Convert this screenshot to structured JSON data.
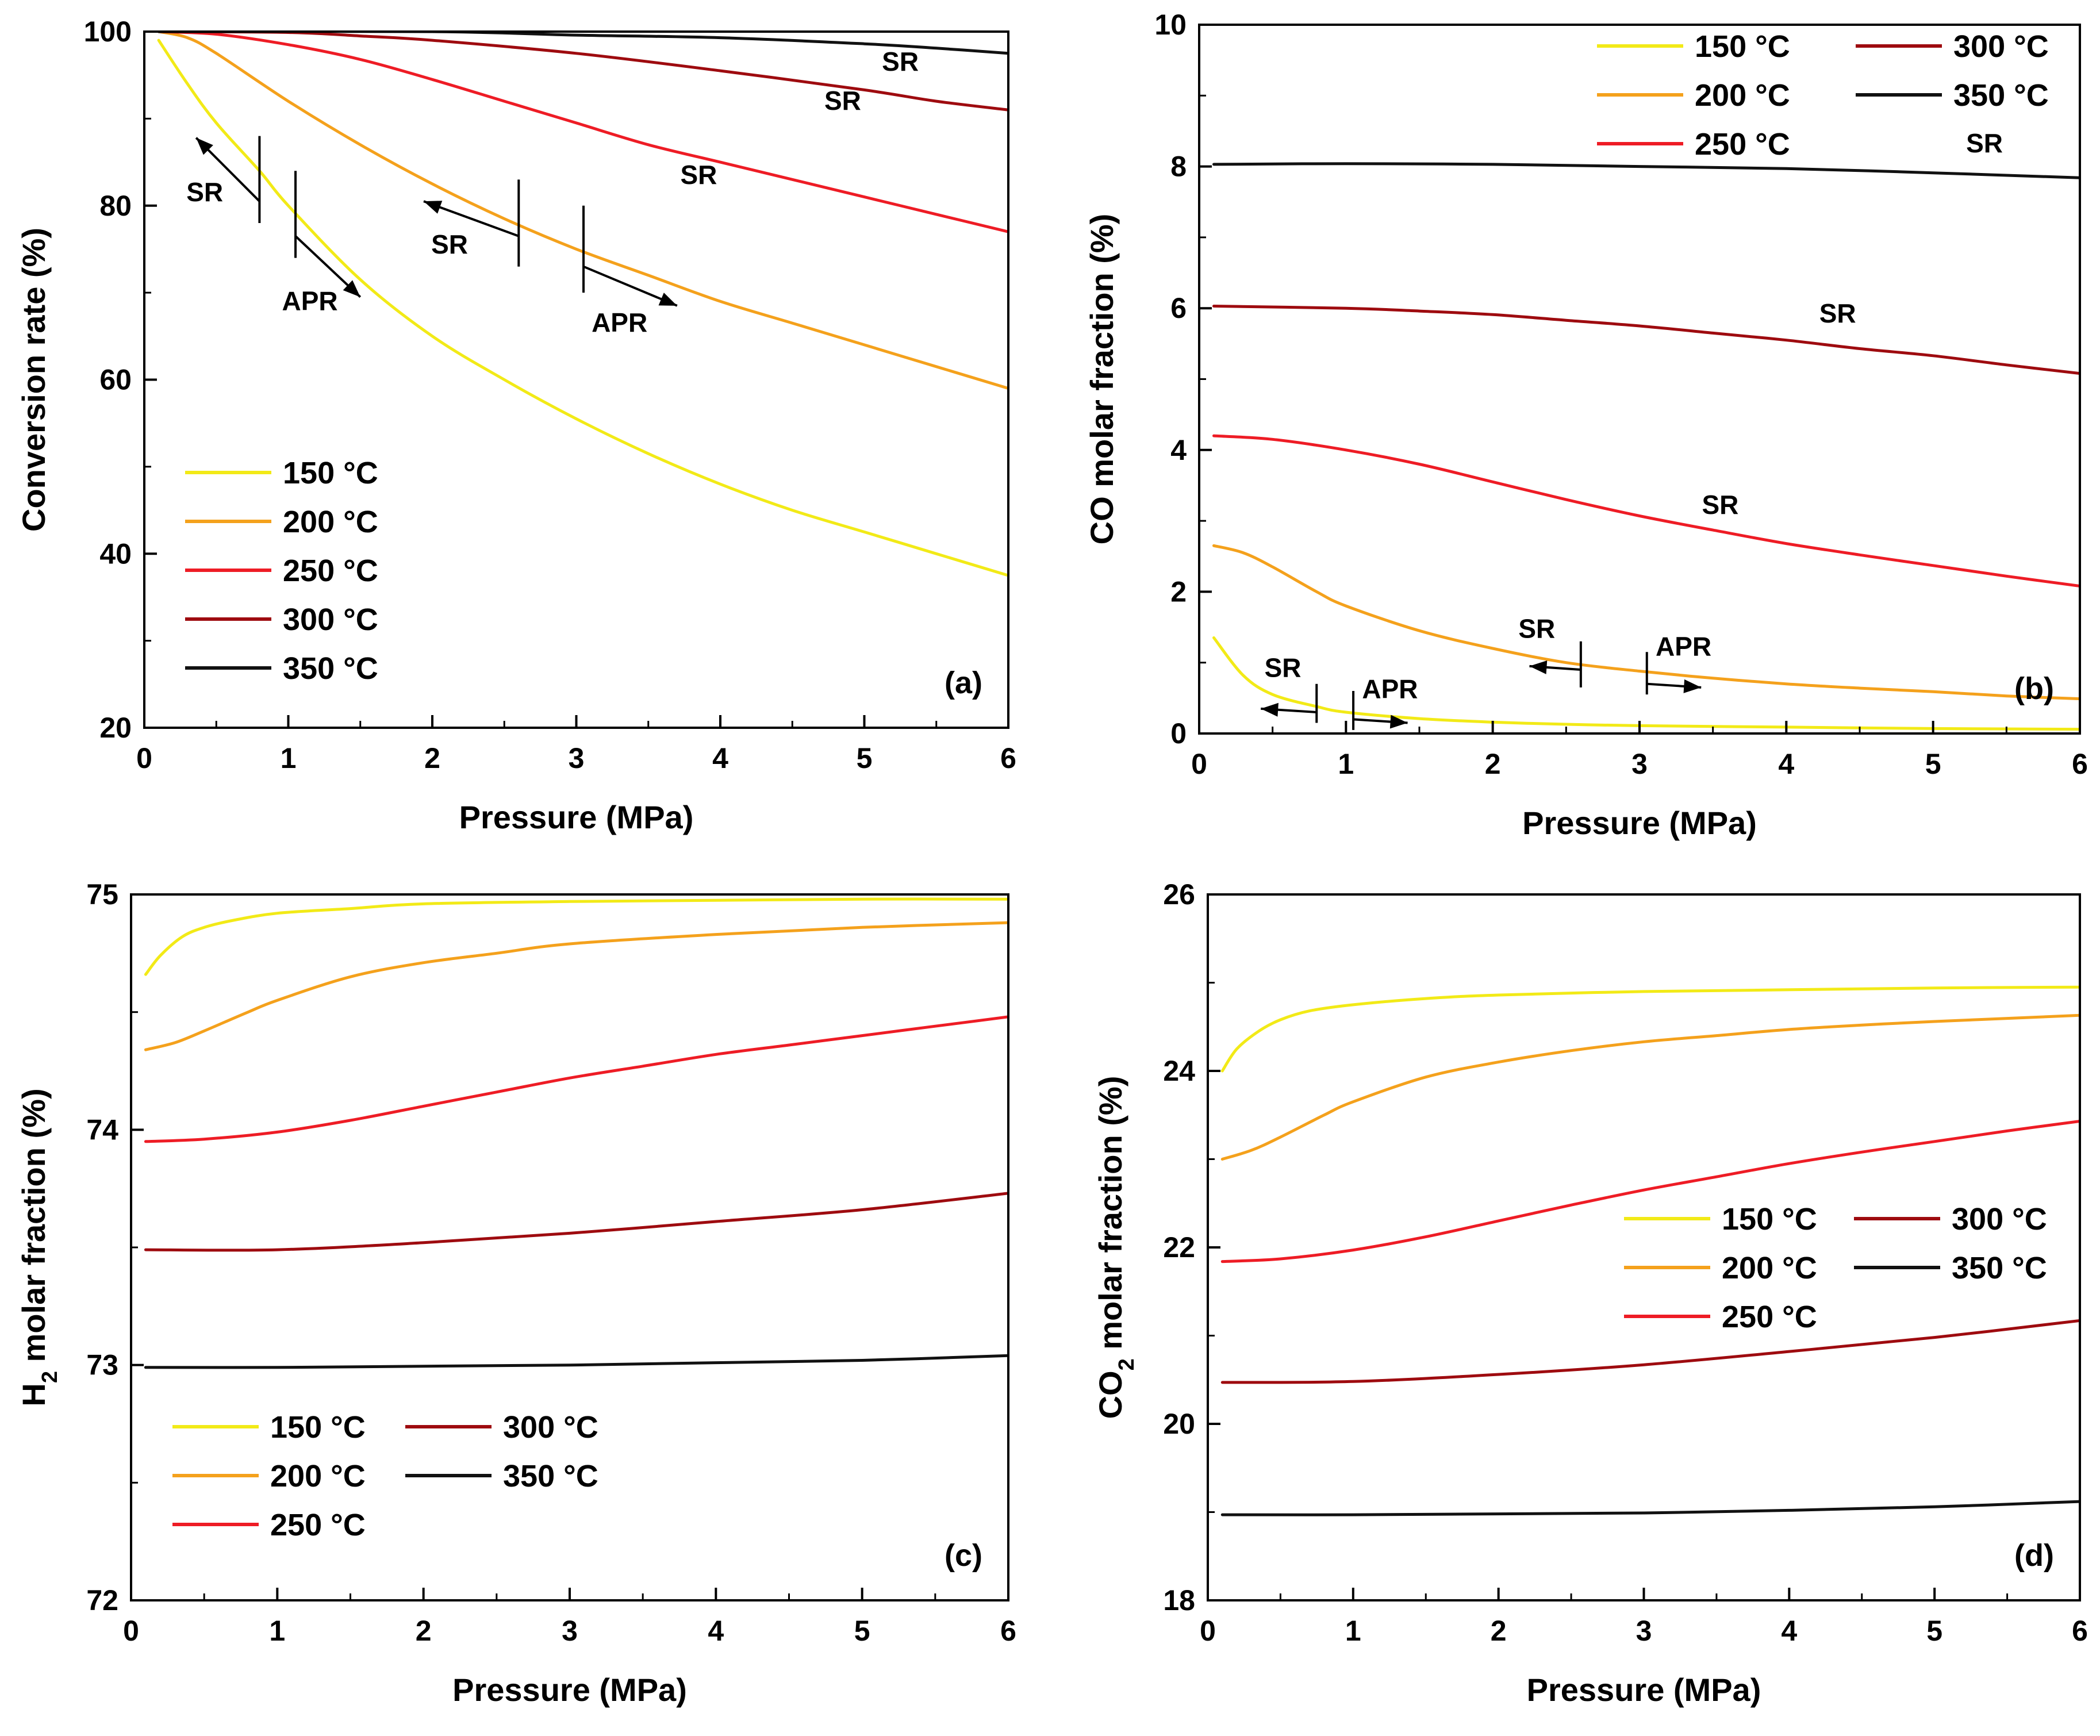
{
  "figure": {
    "colors": {
      "150 °C": "#f2ea17",
      "200 °C": "#f4a11c",
      "250 °C": "#ee1c25",
      "300 °C": "#9e0b0f",
      "350 °C": "#111111"
    }
  },
  "chart_data": [
    {
      "id": "a",
      "type": "line",
      "panel_label": "(a)",
      "xlabel": "Pressure (MPa)",
      "ylabel": "Conversion rate (%)",
      "xlim": [
        0,
        6
      ],
      "ylim": [
        20,
        100
      ],
      "xticks": [
        0,
        1,
        2,
        3,
        4,
        5,
        6
      ],
      "yticks": [
        20,
        40,
        60,
        80,
        100
      ],
      "legend_position": "bottom-left",
      "series": [
        {
          "name": "150 °C",
          "color": "#f2ea17",
          "x": [
            0.1,
            0.3,
            0.5,
            0.8,
            1.0,
            1.5,
            2.0,
            2.5,
            3.0,
            3.5,
            4.0,
            4.5,
            5.0,
            5.5,
            6.0
          ],
          "y": [
            99,
            94,
            89.5,
            84,
            80,
            71.5,
            65,
            60,
            55.5,
            51.5,
            48,
            45,
            42.5,
            40,
            37.5
          ]
        },
        {
          "name": "200 °C",
          "color": "#f4a11c",
          "x": [
            0.1,
            0.3,
            0.5,
            1.0,
            1.5,
            2.0,
            2.5,
            3.0,
            3.5,
            4.0,
            4.5,
            5.0,
            5.5,
            6.0
          ],
          "y": [
            100,
            99.3,
            97.5,
            92,
            87,
            82.5,
            78.5,
            75,
            72,
            69,
            66.5,
            64,
            61.5,
            59
          ]
        },
        {
          "name": "250 °C",
          "color": "#ee1c25",
          "x": [
            0.1,
            0.5,
            1.0,
            1.5,
            2.0,
            2.5,
            3.0,
            3.5,
            4.0,
            4.5,
            5.0,
            5.5,
            6.0
          ],
          "y": [
            100,
            99.7,
            98.5,
            96.8,
            94.5,
            92,
            89.5,
            87,
            85,
            83,
            81,
            79,
            77
          ]
        },
        {
          "name": "300 °C",
          "color": "#9e0b0f",
          "x": [
            0.1,
            1.0,
            1.5,
            2.0,
            3.0,
            4.0,
            5.0,
            5.5,
            6.0
          ],
          "y": [
            100,
            99.9,
            99.5,
            99,
            97.5,
            95.5,
            93.3,
            92,
            91
          ]
        },
        {
          "name": "350 °C",
          "color": "#111111",
          "x": [
            0.1,
            2.0,
            3.0,
            4.0,
            5.0,
            5.5,
            6.0
          ],
          "y": [
            100,
            100,
            99.6,
            99.3,
            98.6,
            98.1,
            97.5
          ]
        }
      ],
      "annotations": [
        {
          "text": "SR",
          "x": 5.25,
          "y": 95.5
        },
        {
          "text": "SR",
          "x": 4.85,
          "y": 91
        },
        {
          "text": "SR",
          "x": 3.85,
          "y": 82.5
        },
        {
          "text": "SR",
          "x": 0.42,
          "y": 80.5
        },
        {
          "text": "APR",
          "x": 1.15,
          "y": 68
        },
        {
          "text": "SR",
          "x": 2.12,
          "y": 74.5
        },
        {
          "text": "APR",
          "x": 3.3,
          "y": 65.5
        }
      ],
      "boundaries": [
        {
          "x": 0.8,
          "y_low": 78,
          "y_high": 88
        },
        {
          "x": 1.05,
          "y_low": 74,
          "y_high": 84
        },
        {
          "x": 2.6,
          "y_low": 73,
          "y_high": 83
        },
        {
          "x": 3.05,
          "y_low": 70,
          "y_high": 80
        }
      ],
      "arrows": [
        {
          "x1": 0.8,
          "y1": 80.5,
          "x2": 0.36,
          "y2": 87.8
        },
        {
          "x1": 1.05,
          "y1": 76.5,
          "x2": 1.5,
          "y2": 69.5
        },
        {
          "x1": 2.6,
          "y1": 76.5,
          "x2": 1.94,
          "y2": 80.5
        },
        {
          "x1": 3.05,
          "y1": 73,
          "x2": 3.7,
          "y2": 68.5
        }
      ]
    },
    {
      "id": "b",
      "type": "line",
      "panel_label": "(b)",
      "xlabel": "Pressure (MPa)",
      "ylabel": "CO molar fraction (%)",
      "xlim": [
        0,
        6
      ],
      "ylim": [
        0,
        10
      ],
      "xticks": [
        0,
        1,
        2,
        3,
        4,
        5,
        6
      ],
      "yticks": [
        0,
        2,
        4,
        6,
        8,
        10
      ],
      "legend_position": "top-right",
      "series": [
        {
          "name": "150 °C",
          "color": "#f2ea17",
          "x": [
            0.1,
            0.3,
            0.5,
            0.8,
            1.0,
            1.5,
            2.0,
            2.5,
            3.0,
            4.0,
            5.0,
            6.0
          ],
          "y": [
            1.35,
            0.82,
            0.55,
            0.38,
            0.3,
            0.21,
            0.16,
            0.13,
            0.11,
            0.09,
            0.07,
            0.06
          ]
        },
        {
          "name": "200 °C",
          "color": "#f4a11c",
          "x": [
            0.1,
            0.3,
            0.5,
            0.8,
            1.0,
            1.5,
            2.0,
            2.5,
            3.0,
            3.5,
            4.0,
            4.5,
            5.0,
            5.5,
            6.0
          ],
          "y": [
            2.65,
            2.55,
            2.35,
            2.0,
            1.8,
            1.45,
            1.2,
            1.0,
            0.88,
            0.78,
            0.7,
            0.64,
            0.59,
            0.53,
            0.49
          ]
        },
        {
          "name": "250 °C",
          "color": "#ee1c25",
          "x": [
            0.1,
            0.5,
            1.0,
            1.5,
            2.0,
            2.5,
            3.0,
            3.5,
            4.0,
            4.5,
            5.0,
            5.5,
            6.0
          ],
          "y": [
            4.2,
            4.15,
            4.0,
            3.8,
            3.55,
            3.3,
            3.07,
            2.87,
            2.68,
            2.52,
            2.37,
            2.22,
            2.08
          ]
        },
        {
          "name": "300 °C",
          "color": "#9e0b0f",
          "x": [
            0.1,
            1.0,
            1.5,
            2.0,
            2.5,
            3.0,
            3.5,
            4.0,
            4.5,
            5.0,
            5.5,
            6.0
          ],
          "y": [
            6.03,
            6.0,
            5.96,
            5.91,
            5.83,
            5.75,
            5.65,
            5.55,
            5.43,
            5.33,
            5.2,
            5.08
          ]
        },
        {
          "name": "350 °C",
          "color": "#111111",
          "x": [
            0.1,
            1.0,
            2.0,
            3.0,
            4.0,
            5.0,
            6.0
          ],
          "y": [
            8.03,
            8.04,
            8.03,
            8.0,
            7.97,
            7.91,
            7.84
          ]
        }
      ],
      "annotations": [
        {
          "text": "SR",
          "x": 5.35,
          "y": 8.2
        },
        {
          "text": "SR",
          "x": 4.35,
          "y": 5.8
        },
        {
          "text": "SR",
          "x": 3.55,
          "y": 3.1
        },
        {
          "text": "SR",
          "x": 2.3,
          "y": 1.35
        },
        {
          "text": "APR",
          "x": 3.3,
          "y": 1.1
        },
        {
          "text": "SR",
          "x": 0.57,
          "y": 0.8
        },
        {
          "text": "APR",
          "x": 1.3,
          "y": 0.5
        }
      ],
      "boundaries": [
        {
          "x": 0.8,
          "y_low": 0.15,
          "y_high": 0.7
        },
        {
          "x": 1.05,
          "y_low": 0.05,
          "y_high": 0.6
        },
        {
          "x": 2.6,
          "y_low": 0.65,
          "y_high": 1.3
        },
        {
          "x": 3.05,
          "y_low": 0.55,
          "y_high": 1.15
        }
      ],
      "arrows": [
        {
          "x1": 0.8,
          "y1": 0.3,
          "x2": 0.42,
          "y2": 0.35
        },
        {
          "x1": 1.05,
          "y1": 0.2,
          "x2": 1.42,
          "y2": 0.15
        },
        {
          "x1": 2.6,
          "y1": 0.9,
          "x2": 2.25,
          "y2": 0.95
        },
        {
          "x1": 3.05,
          "y1": 0.7,
          "x2": 3.42,
          "y2": 0.65
        }
      ]
    },
    {
      "id": "c",
      "type": "line",
      "panel_label": "(c)",
      "xlabel": "Pressure (MPa)",
      "ylabel": "H2 molar fraction (%)",
      "ylabel_main": "H",
      "ylabel_sub": "2",
      "ylabel_rest": " molar fraction (%)",
      "xlim": [
        0,
        6
      ],
      "ylim": [
        72,
        75
      ],
      "xticks": [
        0,
        1,
        2,
        3,
        4,
        5,
        6
      ],
      "yticks": [
        72,
        73,
        74,
        75
      ],
      "legend_position": "bottom-left",
      "series": [
        {
          "name": "150 °C",
          "color": "#f2ea17",
          "x": [
            0.1,
            0.2,
            0.35,
            0.5,
            0.7,
            1.0,
            1.5,
            2.0,
            3.0,
            4.0,
            5.0,
            6.0
          ],
          "y": [
            74.66,
            74.74,
            74.82,
            74.86,
            74.89,
            74.92,
            74.94,
            74.96,
            74.97,
            74.975,
            74.98,
            74.98
          ]
        },
        {
          "name": "200 °C",
          "color": "#f4a11c",
          "x": [
            0.1,
            0.3,
            0.5,
            0.8,
            1.0,
            1.5,
            2.0,
            2.5,
            3.0,
            4.0,
            5.0,
            6.0
          ],
          "y": [
            74.34,
            74.37,
            74.42,
            74.5,
            74.55,
            74.65,
            74.71,
            74.75,
            74.79,
            74.83,
            74.86,
            74.88
          ]
        },
        {
          "name": "250 °C",
          "color": "#ee1c25",
          "x": [
            0.1,
            0.5,
            1.0,
            1.5,
            2.0,
            2.5,
            3.0,
            3.5,
            4.0,
            4.5,
            5.0,
            5.5,
            6.0
          ],
          "y": [
            73.95,
            73.96,
            73.99,
            74.04,
            74.1,
            74.16,
            74.22,
            74.27,
            74.32,
            74.36,
            74.4,
            74.44,
            74.48
          ]
        },
        {
          "name": "300 °C",
          "color": "#9e0b0f",
          "x": [
            0.1,
            1.0,
            2.0,
            3.0,
            4.0,
            5.0,
            6.0
          ],
          "y": [
            73.49,
            73.49,
            73.52,
            73.56,
            73.61,
            73.66,
            73.73
          ]
        },
        {
          "name": "350 °C",
          "color": "#111111",
          "x": [
            0.1,
            1.0,
            2.0,
            3.0,
            4.0,
            5.0,
            6.0
          ],
          "y": [
            72.99,
            72.99,
            72.995,
            73.0,
            73.01,
            73.02,
            73.04
          ]
        }
      ]
    },
    {
      "id": "d",
      "type": "line",
      "panel_label": "(d)",
      "xlabel": "Pressure (MPa)",
      "ylabel": "CO2 molar fraction (%)",
      "ylabel_main": "CO",
      "ylabel_sub": "2",
      "ylabel_rest": " molar fraction (%)",
      "xlim": [
        0,
        6
      ],
      "ylim": [
        18,
        26
      ],
      "xticks": [
        0,
        1,
        2,
        3,
        4,
        5,
        6
      ],
      "yticks": [
        18,
        20,
        22,
        24,
        26
      ],
      "legend_position": "center-right",
      "series": [
        {
          "name": "150 °C",
          "color": "#f2ea17",
          "x": [
            0.1,
            0.2,
            0.35,
            0.5,
            0.7,
            1.0,
            1.5,
            2.0,
            3.0,
            4.0,
            5.0,
            6.0
          ],
          "y": [
            24.0,
            24.25,
            24.45,
            24.58,
            24.68,
            24.75,
            24.82,
            24.86,
            24.9,
            24.92,
            24.94,
            24.95
          ]
        },
        {
          "name": "200 °C",
          "color": "#f4a11c",
          "x": [
            0.1,
            0.3,
            0.5,
            0.8,
            1.0,
            1.5,
            2.0,
            2.5,
            3.0,
            3.5,
            4.0,
            4.5,
            5.0,
            6.0
          ],
          "y": [
            23.0,
            23.1,
            23.25,
            23.5,
            23.65,
            23.93,
            24.1,
            24.23,
            24.33,
            24.4,
            24.47,
            24.52,
            24.56,
            24.63
          ]
        },
        {
          "name": "250 °C",
          "color": "#ee1c25",
          "x": [
            0.1,
            0.5,
            1.0,
            1.5,
            2.0,
            2.5,
            3.0,
            3.5,
            4.0,
            4.5,
            5.0,
            5.5,
            6.0
          ],
          "y": [
            21.84,
            21.87,
            21.97,
            22.12,
            22.3,
            22.48,
            22.65,
            22.8,
            22.95,
            23.08,
            23.2,
            23.32,
            23.43
          ]
        },
        {
          "name": "300 °C",
          "color": "#9e0b0f",
          "x": [
            0.1,
            1.0,
            2.0,
            3.0,
            4.0,
            5.0,
            6.0
          ],
          "y": [
            20.47,
            20.48,
            20.56,
            20.67,
            20.82,
            20.98,
            21.17
          ]
        },
        {
          "name": "350 °C",
          "color": "#111111",
          "x": [
            0.1,
            1.0,
            2.0,
            3.0,
            4.0,
            5.0,
            6.0
          ],
          "y": [
            18.97,
            18.97,
            18.98,
            18.99,
            19.02,
            19.06,
            19.12
          ]
        }
      ]
    }
  ]
}
